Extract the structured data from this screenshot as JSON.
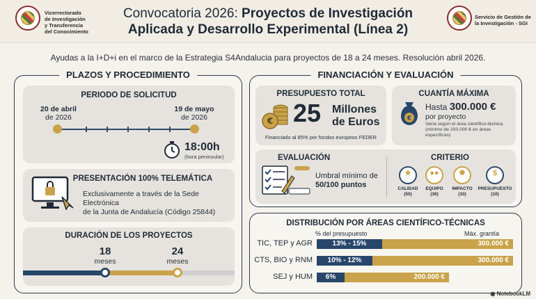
{
  "header": {
    "left_org": [
      "Vicerrectorado",
      "de Investigación",
      "y Transferencia",
      "del Conocimiento"
    ],
    "title_plain": "Convocatoria 2026: ",
    "title_bold_1": "Proyectos de Investigación",
    "title_bold_2": "Aplicada y Desarrollo Experimental (Línea 2)",
    "right_org": [
      "Servicio de Gestión de",
      "la Investigación - SGI"
    ]
  },
  "subtitle": "Ayudas a la I+D+i en el marco de la Estrategia S4Andalucia para proyectos de 18 a 24 meses. Resolución abril 2026.",
  "plazos": {
    "title": "PLAZOS Y PROCEDIMIENTO",
    "periodo": {
      "title": "PERIODO DE SOLICITUD",
      "start_day": "20 de abril",
      "start_year": "de 2026",
      "end_day": "19 de mayo",
      "end_year": "de 2026",
      "time": "18:00h",
      "time_note": "(hora peninsular)"
    },
    "telematica": {
      "title": "PRESENTACIÓN 100% TELEMÁTICA",
      "text_1": "Exclusivamente a través de la Sede Electrónica",
      "text_2": "de la Junta de Andalucía (Código 25844)"
    },
    "duracion": {
      "title": "DURACIÓN DE LOS PROYECTOS",
      "min_value": "18",
      "min_unit": "meses",
      "max_value": "24",
      "max_unit": "meses"
    }
  },
  "financiacion": {
    "title": "FINANCIACIÓN Y EVALUACIÓN",
    "presupuesto": {
      "title": "PRESUPUESTO TOTAL",
      "amount": "25",
      "unit_1": "Millones",
      "unit_2": "de Euros",
      "note": "Financiado al 85% por fondos europeos FEDER"
    },
    "cuantia": {
      "title": "CUANTÍA MÁXIMA",
      "prefix": "Hasta ",
      "amount": "300.000 €",
      "per": "por proyecto",
      "note_1": "Varía según el área científico-técnica",
      "note_2": "(mínimo de 200.000 € en áreas",
      "note_3": "específicas)"
    },
    "evaluacion": {
      "title": "EVALUACIÓN",
      "text_1": "Umbral mínimo de",
      "text_2": "50/100 puntos"
    },
    "criterio": {
      "title": "CRITERIO",
      "items": [
        {
          "label": "CALIDAD",
          "points": "(50)"
        },
        {
          "label": "EQUIPO",
          "points": "(30)"
        },
        {
          "label": "IMPACTO",
          "points": "(10)"
        },
        {
          "label": "PRESUPUESTO",
          "points": "(10)"
        }
      ]
    }
  },
  "distribucion": {
    "title": "DISTRIBUCIÓN POR ÁREAS CIENTÍFICO-TÉCNICAS",
    "col_pct": "% del presupuesto",
    "col_max": "Máx. grantía",
    "rows": [
      {
        "area": "TIC, TEP y AGR",
        "pct": "13% - 15%",
        "max": "300.000 €"
      },
      {
        "area": "CTS, BIO y RNM",
        "pct": "10% - 12%",
        "max": "300.000 €"
      },
      {
        "area": "SEJ y HUM",
        "pct": "6%",
        "max": "200.000 €"
      }
    ]
  },
  "footer": "NotebookLM",
  "colors": {
    "navy": "#27466a",
    "gold": "#c9a24a",
    "card": "#e6e3de"
  }
}
